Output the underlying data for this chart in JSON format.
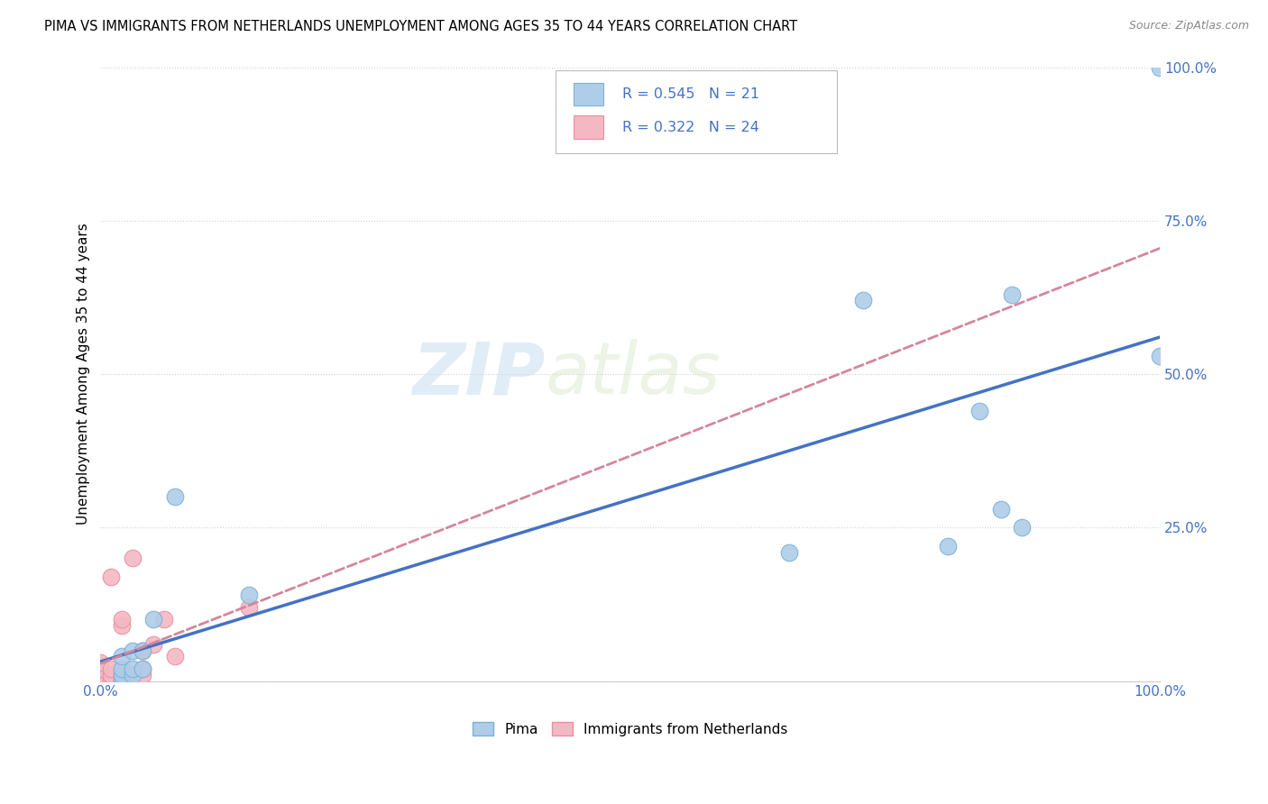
{
  "title": "PIMA VS IMMIGRANTS FROM NETHERLANDS UNEMPLOYMENT AMONG AGES 35 TO 44 YEARS CORRELATION CHART",
  "source": "Source: ZipAtlas.com",
  "ylabel": "Unemployment Among Ages 35 to 44 years",
  "xlim": [
    0,
    1
  ],
  "ylim": [
    0,
    1
  ],
  "x_ticks": [
    0.0,
    0.25,
    0.5,
    0.75,
    1.0
  ],
  "y_ticks": [
    0.0,
    0.25,
    0.5,
    0.75,
    1.0
  ],
  "watermark_part1": "ZIP",
  "watermark_part2": "atlas",
  "pima_x": [
    0.02,
    0.02,
    0.02,
    0.02,
    0.03,
    0.03,
    0.03,
    0.04,
    0.04,
    0.05,
    0.07,
    0.14,
    0.65,
    0.72,
    0.8,
    0.83,
    0.85,
    0.86,
    0.87,
    1.0,
    1.0
  ],
  "pima_y": [
    0.0,
    0.01,
    0.02,
    0.04,
    0.01,
    0.02,
    0.05,
    0.02,
    0.05,
    0.1,
    0.3,
    0.14,
    0.21,
    0.62,
    0.22,
    0.44,
    0.28,
    0.63,
    0.25,
    0.53,
    1.0
  ],
  "netherlands_x": [
    0.0,
    0.0,
    0.0,
    0.0,
    0.0,
    0.0,
    0.0,
    0.01,
    0.01,
    0.01,
    0.01,
    0.02,
    0.02,
    0.02,
    0.02,
    0.03,
    0.03,
    0.04,
    0.04,
    0.04,
    0.05,
    0.06,
    0.07,
    0.14
  ],
  "netherlands_y": [
    0.0,
    0.0,
    0.01,
    0.01,
    0.02,
    0.02,
    0.03,
    0.0,
    0.01,
    0.02,
    0.17,
    0.0,
    0.01,
    0.09,
    0.1,
    0.01,
    0.2,
    0.01,
    0.02,
    0.05,
    0.06,
    0.1,
    0.04,
    0.12
  ],
  "pima_color": "#aecde8",
  "netherlands_color": "#f4b8c4",
  "pima_edge_color": "#7eb0d5",
  "netherlands_edge_color": "#e88fa0",
  "pima_line_color": "#4472c4",
  "netherlands_line_color": "#d4869a",
  "pima_R": 0.545,
  "pima_N": 21,
  "netherlands_R": 0.322,
  "netherlands_N": 24,
  "legend_pima_label": "Pima",
  "legend_netherlands_label": "Immigrants from Netherlands",
  "background_color": "#ffffff",
  "title_fontsize": 10.5,
  "axis_label_fontsize": 11,
  "tick_fontsize": 11,
  "source_fontsize": 9
}
